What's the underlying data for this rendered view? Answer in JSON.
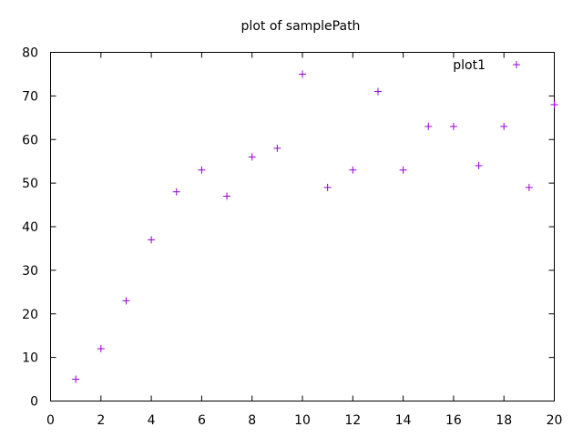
{
  "chart_data": {
    "type": "scatter",
    "title": "plot of samplePath",
    "xlabel": "",
    "ylabel": "",
    "xlim": [
      0,
      20
    ],
    "ylim": [
      0,
      80
    ],
    "xticks": [
      0,
      2,
      4,
      6,
      8,
      10,
      12,
      14,
      16,
      18,
      20
    ],
    "yticks": [
      0,
      10,
      20,
      30,
      40,
      50,
      60,
      70,
      80
    ],
    "grid": false,
    "legend_position": "top-right",
    "marker": "+",
    "series": [
      {
        "name": "plot1",
        "color": "#9400d3",
        "x": [
          1,
          2,
          3,
          4,
          5,
          6,
          7,
          8,
          9,
          10,
          11,
          12,
          13,
          14,
          15,
          16,
          17,
          18,
          19,
          20
        ],
        "y": [
          5,
          12,
          23,
          37,
          48,
          53,
          47,
          56,
          58,
          75,
          49,
          53,
          71,
          53,
          63,
          63,
          54,
          63,
          49,
          68
        ]
      }
    ]
  }
}
